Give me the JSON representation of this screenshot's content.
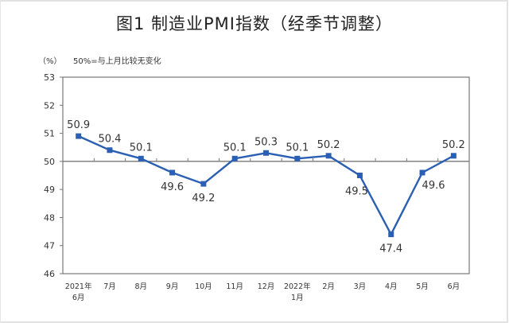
{
  "title": "图1 制造业PMI指数（经季节调整）",
  "unit_label": "（%）",
  "note": "50%=与上月比较无变化",
  "colors": {
    "line": "#2b5fb3",
    "axis": "#777777",
    "text": "#333333"
  },
  "chart_data": {
    "type": "line",
    "title": "图1 制造业PMI指数（经季节调整）",
    "xlabel": "",
    "ylabel": "%",
    "ylim": [
      46,
      53
    ],
    "yticks": [
      46,
      47,
      48,
      49,
      50,
      51,
      52,
      53
    ],
    "reference_line": 50,
    "grid": false,
    "legend": null,
    "annotations": [
      "50%=与上月比较无变化"
    ],
    "categories": [
      [
        "2021年",
        "6月"
      ],
      [
        "7月"
      ],
      [
        "8月"
      ],
      [
        "9月"
      ],
      [
        "10月"
      ],
      [
        "11月"
      ],
      [
        "12月"
      ],
      [
        "2022年",
        "1月"
      ],
      [
        "2月"
      ],
      [
        "3月"
      ],
      [
        "4月"
      ],
      [
        "5月"
      ],
      [
        "6月"
      ]
    ],
    "series": [
      {
        "name": "制造业PMI",
        "values": [
          50.9,
          50.4,
          50.1,
          49.6,
          49.2,
          50.1,
          50.3,
          50.1,
          50.2,
          49.5,
          47.4,
          49.6,
          50.2
        ]
      }
    ],
    "label_positions": [
      "above",
      "above",
      "above",
      "below",
      "below",
      "above",
      "above",
      "above",
      "above",
      "below-left",
      "below",
      "below-right",
      "above"
    ]
  }
}
